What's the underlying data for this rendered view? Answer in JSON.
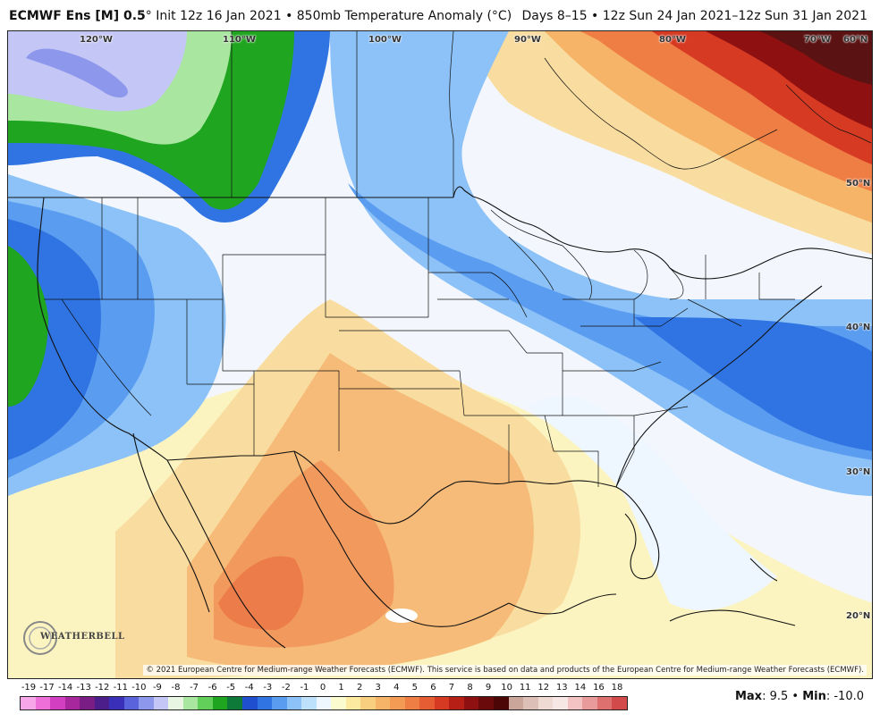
{
  "header": {
    "title_bold": "ECMWF Ens [M] 0.5",
    "title_rest": "° Init 12z 16 Jan 2021 • 850mb Temperature Anomaly (°C)",
    "valid": "Days 8–15 • 12z Sun 24 Jan 2021–12z Sun 31 Jan 2021"
  },
  "map": {
    "lon_labels": [
      "120°W",
      "110°W",
      "100°W",
      "90°W",
      "80°W",
      "70°W",
      "60°N"
    ],
    "lat_labels": [
      "50°N",
      "40°N",
      "30°N",
      "20°N"
    ],
    "copyright": "© 2021 European Centre for Medium-range Weather Forecasts (ECMWF). This service is based on data and products of the European Centre for Medium-range Weather Forecasts (ECMWF).",
    "logo_text": "WEATHERBELL"
  },
  "legend": {
    "labels": [
      "-19",
      "-17",
      "-14",
      "-13",
      "-12",
      "-11",
      "-10",
      "-9",
      "-8",
      "-7",
      "-6",
      "-5",
      "-4",
      "-3",
      "-2",
      "-1",
      "0",
      "1",
      "2",
      "3",
      "4",
      "5",
      "6",
      "7",
      "8",
      "9",
      "10",
      "11",
      "12",
      "13",
      "14",
      "16",
      "18"
    ],
    "colors": [
      "#f7a6e8",
      "#ee6fd8",
      "#d23fc0",
      "#a8279c",
      "#7a1e86",
      "#4b1e8c",
      "#3a2fb8",
      "#5a63dc",
      "#8d97ec",
      "#c4c7f5",
      "#e8f5e2",
      "#a9e6a0",
      "#61cf5a",
      "#1fa51f",
      "#0d7a3a",
      "#1f4fcf",
      "#2f74e2",
      "#5a9cf0",
      "#8cc2f7",
      "#bde0fb",
      "#eef6ff",
      "#fbfbd0",
      "#fbeaa0",
      "#f8cf7e",
      "#f6b468",
      "#f39a55",
      "#ef7e45",
      "#e65c33",
      "#d63a22",
      "#b61f16",
      "#8e1010",
      "#6a0a0a",
      "#4d0606",
      "#c9a59a",
      "#dcc0b8",
      "#efd9d3",
      "#f7e7e4",
      "#f3c3c3",
      "#e99a9a",
      "#de7070",
      "#d24a4a"
    ]
  },
  "maxmin": {
    "max_label": "Max",
    "max_value": ": 9.5 • ",
    "min_label": "Min",
    "min_value": ": -10.0"
  }
}
